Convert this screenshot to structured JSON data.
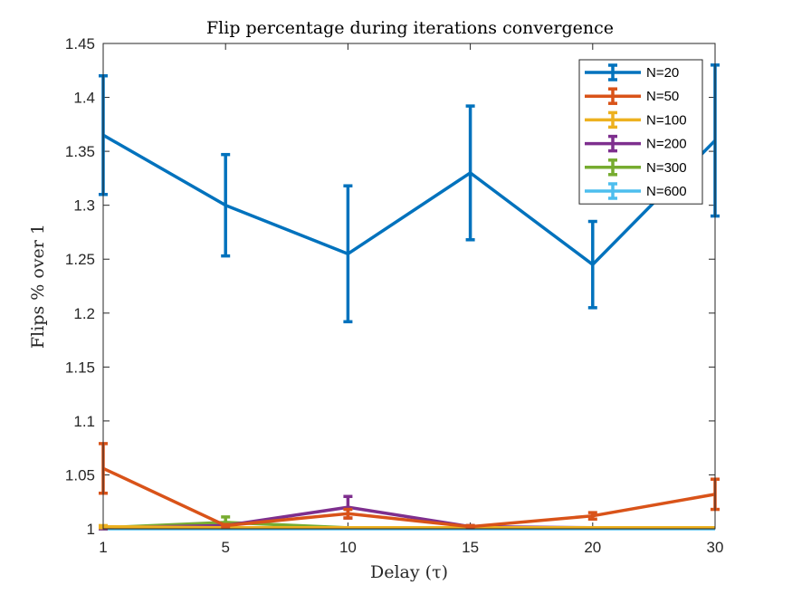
{
  "chart_data": {
    "type": "line",
    "title": "Flip percentage during iterations convergence",
    "xlabel": "Delay (τ)",
    "ylabel": "Flips % over 1",
    "x_tick_labels": [
      "1",
      "5",
      "10",
      "15",
      "20",
      "30"
    ],
    "y_ticks": [
      "1",
      "1.05",
      "1.1",
      "1.15",
      "1.2",
      "1.25",
      "1.3",
      "1.35",
      "1.4",
      "1.45"
    ],
    "ylim": [
      1,
      1.45
    ],
    "legend_position": "top-right",
    "grid": false,
    "series": [
      {
        "name": "N=20",
        "color": "#0072BD",
        "values": [
          1.365,
          1.3,
          1.255,
          1.33,
          1.245,
          1.36
        ],
        "errors": [
          0.055,
          0.047,
          0.063,
          0.062,
          0.04,
          0.07
        ]
      },
      {
        "name": "N=50",
        "color": "#D95319",
        "values": [
          1.056,
          1.003,
          1.014,
          1.002,
          1.012,
          1.032
        ],
        "errors": [
          0.023,
          0.001,
          0.004,
          0.001,
          0.003,
          0.014
        ]
      },
      {
        "name": "N=100",
        "color": "#EDB120",
        "values": [
          1.002,
          1.001,
          1.001,
          1.001,
          1.001,
          1.001
        ],
        "errors": [
          0.001,
          0.0,
          0.0,
          0.0,
          0.0,
          0.0
        ]
      },
      {
        "name": "N=200",
        "color": "#7E2F8E",
        "values": [
          1.001,
          1.003,
          1.02,
          1.002,
          1.001,
          1.001
        ],
        "errors": [
          0.001,
          0.001,
          0.01,
          0.001,
          0.0,
          0.0
        ]
      },
      {
        "name": "N=300",
        "color": "#77AC30",
        "values": [
          1.001,
          1.006,
          1.001,
          1.001,
          1.001,
          1.001
        ],
        "errors": [
          0.001,
          0.005,
          0.0,
          0.0,
          0.0,
          0.0
        ]
      },
      {
        "name": "N=600",
        "color": "#4DBEEE",
        "values": [
          1.0,
          1.0,
          1.0,
          1.0,
          1.0,
          1.0
        ],
        "errors": [
          0.0,
          0.0,
          0.0,
          0.0,
          0.0,
          0.0
        ]
      }
    ]
  }
}
